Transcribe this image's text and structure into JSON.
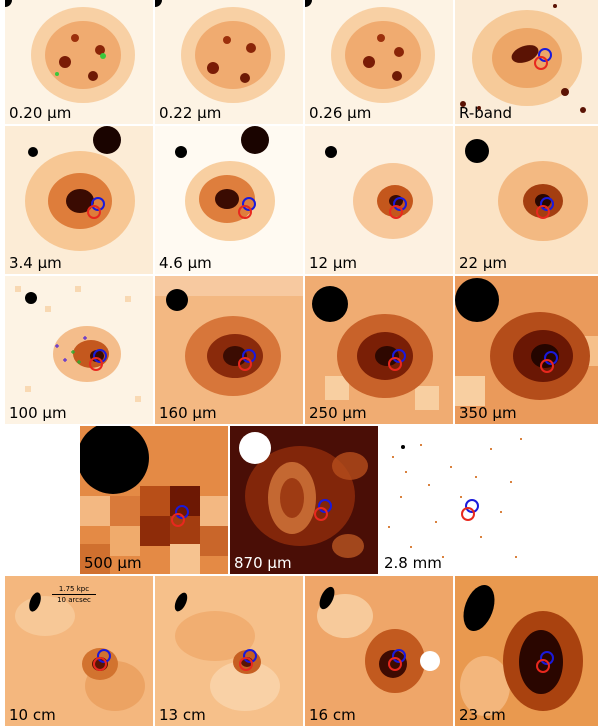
{
  "panels": [
    {
      "label": "0.20 μm",
      "background": "#fdf3e4"
    },
    {
      "label": "0.22 μm",
      "background": "#fdf3e4"
    },
    {
      "label": "0.26 μm",
      "background": "#fdf3e4"
    },
    {
      "label": "R-band",
      "background": "#fbecd8"
    },
    {
      "label": "3.4 μm",
      "background": "#fcecd6"
    },
    {
      "label": "4.6 μm",
      "background": "#fffaf2"
    },
    {
      "label": "12 μm",
      "background": "#fdf1e1"
    },
    {
      "label": "22 μm",
      "background": "#fbe3c5"
    },
    {
      "label": "100 μm",
      "background": "#fdf3e4"
    },
    {
      "label": "160 μm",
      "background": "#f3b882"
    },
    {
      "label": "250 μm",
      "background": "#f0ac72"
    },
    {
      "label": "350 μm",
      "background": "#ea9a5b"
    },
    {
      "label": "500 μm",
      "background": "#e48a45"
    },
    {
      "label": "870 μm",
      "background": "#4a0e06"
    },
    {
      "label": "2.8 mm",
      "background": "#ffffff"
    },
    {
      "label": "10 cm",
      "background": "#f4b77e"
    },
    {
      "label": "13 cm",
      "background": "#f6c08a"
    },
    {
      "label": "16 cm",
      "background": "#efa669"
    },
    {
      "label": "23 cm",
      "background": "#e9994f"
    }
  ],
  "scale_bar": {
    "distance": "1.75 kpc",
    "angle": "10 arcsec"
  },
  "colors": {
    "marker_blue": "#1a1adb",
    "marker_red": "#e8281e",
    "beam": "#000000"
  }
}
